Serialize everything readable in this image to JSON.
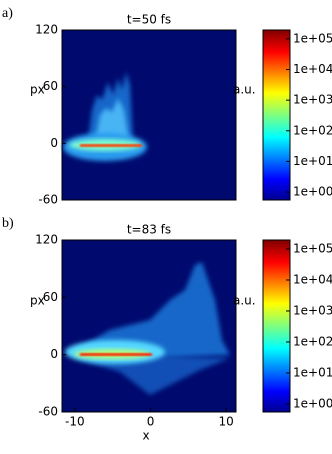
{
  "chart_data": [
    {
      "type": "heatmap",
      "panel_label": "a)",
      "title": "t=50 fs",
      "ylabel": "px",
      "ylim": [
        -60,
        120
      ],
      "yticks": [
        -60,
        0,
        60,
        120
      ],
      "colorbar": {
        "label": "a.u.",
        "log": true,
        "lim": [
          0.55,
          195000
        ],
        "ticks": [
          {
            "value": 1,
            "label": "1e+00"
          },
          {
            "value": 10,
            "label": "1e+01"
          },
          {
            "value": 100,
            "label": "1e+02"
          },
          {
            "value": 1000,
            "label": "1e+03"
          },
          {
            "value": 10000,
            "label": "1e+04"
          },
          {
            "value": 100000,
            "label": "1e+05"
          }
        ]
      }
    },
    {
      "type": "heatmap",
      "panel_label": "b)",
      "title": "t=83 fs",
      "ylabel": "px",
      "xlabel": "x",
      "xlim": [
        -11.7,
        11.3
      ],
      "xticks": [
        -10,
        0,
        10
      ],
      "ylim": [
        -60,
        120
      ],
      "yticks": [
        -60,
        0,
        60,
        120
      ],
      "colorbar": {
        "label": "a.u.",
        "log": true,
        "lim": [
          0.55,
          195000
        ],
        "ticks": [
          {
            "value": 1,
            "label": "1e+00"
          },
          {
            "value": 10,
            "label": "1e+01"
          },
          {
            "value": 100,
            "label": "1e+02"
          },
          {
            "value": 1000,
            "label": "1e+03"
          },
          {
            "value": 10000,
            "label": "1e+04"
          },
          {
            "value": 100000,
            "label": "1e+05"
          }
        ]
      }
    }
  ]
}
